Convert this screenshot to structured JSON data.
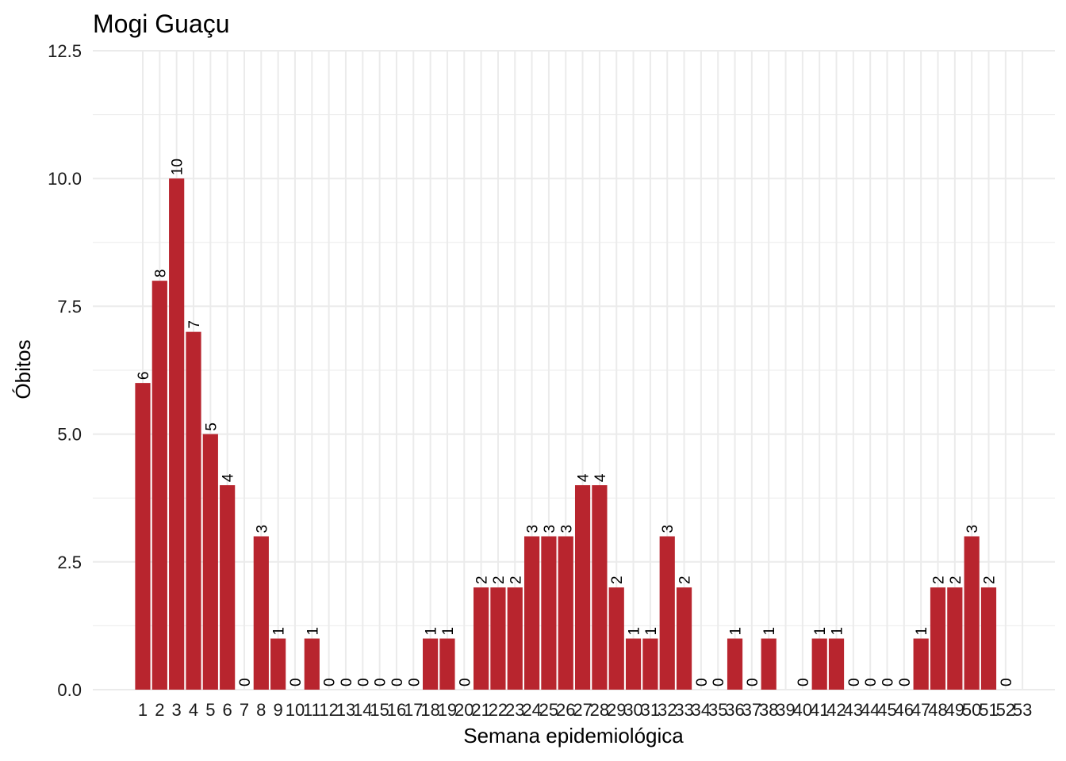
{
  "chart_data": {
    "type": "bar",
    "title": "Mogi Guaçu",
    "xlabel": "Semana epidemiológica",
    "ylabel": "Óbitos",
    "ylim": [
      0,
      12.5
    ],
    "yticks": [
      "0.0",
      "2.5",
      "5.0",
      "7.5",
      "10.0",
      "12.5"
    ],
    "categories": [
      "1",
      "2",
      "3",
      "4",
      "5",
      "6",
      "7",
      "8",
      "9",
      "10",
      "11",
      "12",
      "13",
      "14",
      "15",
      "16",
      "17",
      "18",
      "19",
      "20",
      "21",
      "22",
      "23",
      "24",
      "25",
      "26",
      "27",
      "28",
      "29",
      "30",
      "31",
      "32",
      "33",
      "34",
      "35",
      "36",
      "37",
      "38",
      "39",
      "40",
      "41",
      "42",
      "43",
      "44",
      "45",
      "46",
      "47",
      "48",
      "49",
      "50",
      "51",
      "52",
      "53"
    ],
    "values": [
      6,
      8,
      10,
      7,
      5,
      4,
      0,
      3,
      1,
      0,
      1,
      0,
      0,
      0,
      0,
      0,
      0,
      1,
      1,
      0,
      2,
      2,
      2,
      3,
      3,
      3,
      4,
      4,
      2,
      1,
      1,
      3,
      2,
      0,
      0,
      1,
      0,
      1,
      null,
      0,
      1,
      1,
      0,
      0,
      0,
      0,
      1,
      2,
      2,
      3,
      2,
      0,
      null
    ],
    "grid": true,
    "bar_color": "#B8252E",
    "grid_color": "#EBEBEB"
  }
}
